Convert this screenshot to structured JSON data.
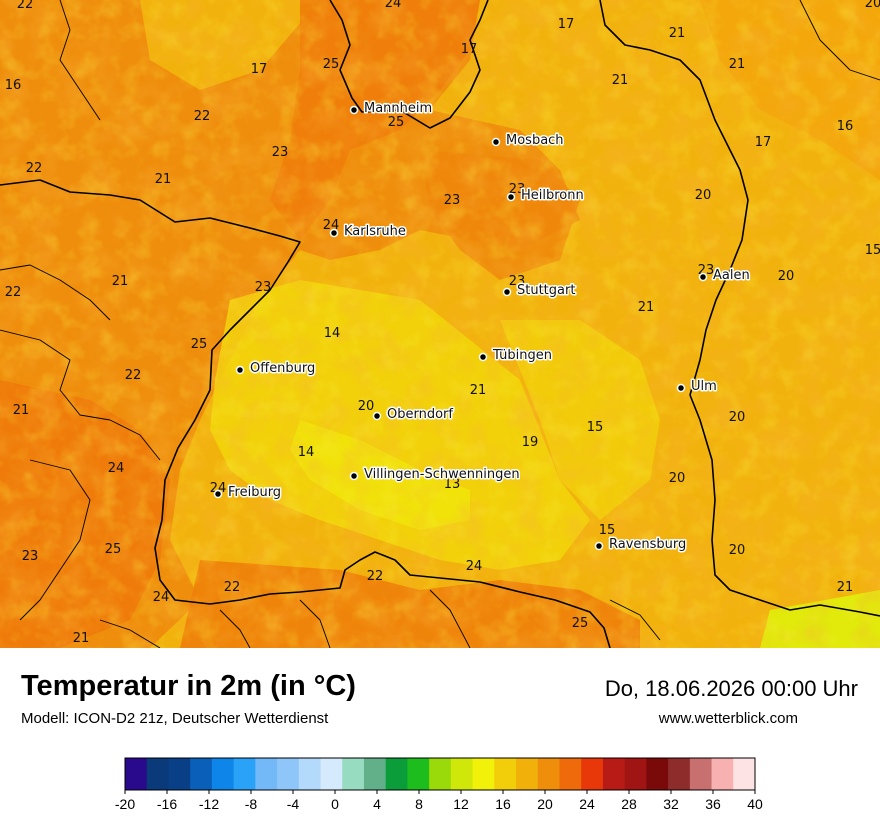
{
  "title": "Temperatur in 2m (in °C)",
  "model": "Modell: ICON-D2 21z, Deutscher Wetterdienst",
  "datetime": "Do, 18.06.2026 00:00 Uhr",
  "website": "www.wetterblick.com",
  "cities": [
    {
      "name": "Mannheim"
    },
    {
      "name": "Mosbach"
    },
    {
      "name": "Heilbronn"
    },
    {
      "name": "Karlsruhe"
    },
    {
      "name": "Stuttgart"
    },
    {
      "name": "Aalen"
    },
    {
      "name": "Tübingen"
    },
    {
      "name": "Offenburg"
    },
    {
      "name": "Ulm"
    },
    {
      "name": "Oberndorf"
    },
    {
      "name": "Villingen-Schwenningen"
    },
    {
      "name": "Freiburg"
    },
    {
      "name": "Ravensburg"
    }
  ],
  "values": [
    "22",
    "24",
    "20",
    "16",
    "17",
    "25",
    "17",
    "21",
    "21",
    "17",
    "21",
    "22",
    "25",
    "16",
    "23",
    "22",
    "17",
    "21",
    "23",
    "23",
    "20",
    "24",
    "15",
    "23",
    "21",
    "20",
    "22",
    "23",
    "23",
    "14",
    "21",
    "25",
    "22",
    "21",
    "21",
    "20",
    "20",
    "19",
    "15",
    "24",
    "14",
    "13",
    "20",
    "24",
    "25",
    "15",
    "23",
    "20",
    "22",
    "22",
    "24",
    "21",
    "24",
    "25",
    "21"
  ],
  "legend": {
    "colors": [
      "#2a0a8c",
      "#0a3a7a",
      "#083f86",
      "#0a5fb8",
      "#0e85e8",
      "#2aa2f8",
      "#73b9f7",
      "#8fc6f9",
      "#b3d9fb",
      "#d6eafd",
      "#97dbc0",
      "#61b08a",
      "#0a9d39",
      "#1dbd1e",
      "#9ad90a",
      "#cfe80a",
      "#f1f10a",
      "#f1cd0a",
      "#f1b00a",
      "#ef8e0a",
      "#ef6a0a",
      "#e8380a",
      "#b81a16",
      "#a01414",
      "#7a0a0a",
      "#8e2b2b",
      "#c87070",
      "#f7b1b1",
      "#fde3e3"
    ],
    "ticks": [
      "-20",
      "-16",
      "-12",
      "-8",
      "-4",
      "0",
      "4",
      "8",
      "12",
      "16",
      "20",
      "24",
      "28",
      "32",
      "36",
      "40"
    ]
  }
}
